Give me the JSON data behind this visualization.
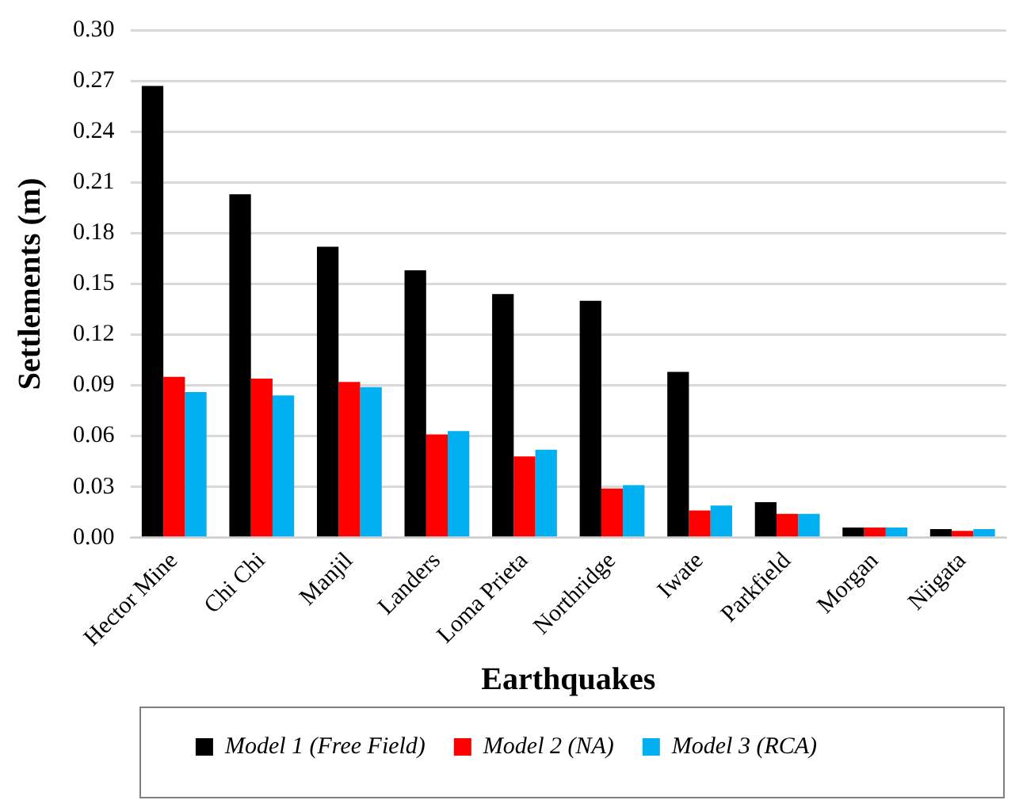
{
  "chart_data": {
    "type": "bar",
    "xlabel": "Earthquakes",
    "ylabel": "Settlements (m)",
    "categories": [
      "Hector Mine",
      "Chi Chi",
      "Manjil",
      "Landers",
      "Loma Prieta",
      "Northridge",
      "Iwate",
      "Parkfield",
      "Morgan",
      "Niigata"
    ],
    "series": [
      {
        "name": "Model 1 (Free Field)",
        "color": "#000000",
        "values": [
          0.267,
          0.203,
          0.172,
          0.158,
          0.144,
          0.14,
          0.098,
          0.021,
          0.006,
          0.005
        ]
      },
      {
        "name": "Model 2 (NA)",
        "color": "#ff0000",
        "values": [
          0.095,
          0.094,
          0.092,
          0.061,
          0.048,
          0.029,
          0.016,
          0.014,
          0.006,
          0.004
        ]
      },
      {
        "name": "Model 3 (RCA)",
        "color": "#00b0f0",
        "values": [
          0.086,
          0.084,
          0.089,
          0.063,
          0.052,
          0.031,
          0.019,
          0.014,
          0.006,
          0.005
        ]
      }
    ],
    "ylim": [
      0,
      0.3
    ],
    "yticks": [
      {
        "value": 0,
        "label": "0.00"
      },
      {
        "value": 0.03,
        "label": "0.03"
      },
      {
        "value": 0.06,
        "label": "0.06"
      },
      {
        "value": 0.09,
        "label": "0.09"
      },
      {
        "value": 0.12,
        "label": "0.12"
      },
      {
        "value": 0.15,
        "label": "0.15"
      },
      {
        "value": 0.18,
        "label": "0.18"
      },
      {
        "value": 0.21,
        "label": "0.21"
      },
      {
        "value": 0.24,
        "label": "0.24"
      },
      {
        "value": 0.27,
        "label": "0.27"
      },
      {
        "value": 0.3,
        "label": "0.30"
      }
    ],
    "grid": "y",
    "legend": "bottom"
  }
}
